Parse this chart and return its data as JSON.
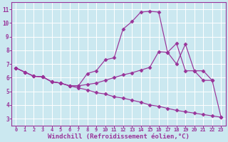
{
  "bg_color": "#cbe8f0",
  "line_color": "#993399",
  "grid_color": "#ffffff",
  "xlabel": "Windchill (Refroidissement éolien,°C)",
  "xlabel_fontsize": 6.5,
  "xlim": [
    -0.5,
    23.5
  ],
  "ylim": [
    2.5,
    11.5
  ],
  "xticks": [
    0,
    1,
    2,
    3,
    4,
    5,
    6,
    7,
    8,
    9,
    10,
    11,
    12,
    13,
    14,
    15,
    16,
    17,
    18,
    19,
    20,
    21,
    22,
    23
  ],
  "yticks": [
    3,
    4,
    5,
    6,
    7,
    8,
    9,
    10,
    11
  ],
  "line_upper_x": [
    0,
    1,
    2,
    3,
    4,
    5,
    6,
    7,
    8,
    9,
    10,
    11,
    12,
    13,
    14,
    15,
    16,
    17,
    18,
    19,
    20,
    21,
    22
  ],
  "line_upper_y": [
    6.7,
    6.4,
    6.1,
    6.05,
    5.7,
    5.6,
    5.4,
    5.4,
    6.3,
    6.5,
    7.3,
    7.45,
    9.55,
    10.1,
    10.8,
    10.85,
    10.8,
    7.85,
    7.0,
    8.45,
    6.5,
    6.5,
    5.8
  ],
  "line_mid_x": [
    0,
    1,
    2,
    3,
    4,
    5,
    6,
    7,
    8,
    9,
    10,
    11,
    12,
    13,
    14,
    15,
    16,
    17,
    18,
    19,
    20,
    21,
    22,
    23
  ],
  "line_mid_y": [
    6.7,
    6.4,
    6.1,
    6.05,
    5.7,
    5.6,
    5.4,
    5.4,
    5.5,
    5.6,
    5.8,
    6.0,
    6.2,
    6.35,
    6.55,
    6.75,
    7.9,
    7.85,
    8.5,
    6.5,
    6.5,
    5.8,
    5.8,
    3.1
  ],
  "line_lower_x": [
    0,
    1,
    2,
    3,
    4,
    5,
    6,
    7,
    8,
    9,
    10,
    11,
    12,
    13,
    14,
    15,
    16,
    17,
    18,
    19,
    20,
    21,
    22,
    23
  ],
  "line_lower_y": [
    6.7,
    6.4,
    6.1,
    6.05,
    5.7,
    5.6,
    5.4,
    5.25,
    5.1,
    4.9,
    4.8,
    4.6,
    4.5,
    4.35,
    4.2,
    4.0,
    3.9,
    3.75,
    3.6,
    3.5,
    3.4,
    3.3,
    3.2,
    3.1
  ]
}
